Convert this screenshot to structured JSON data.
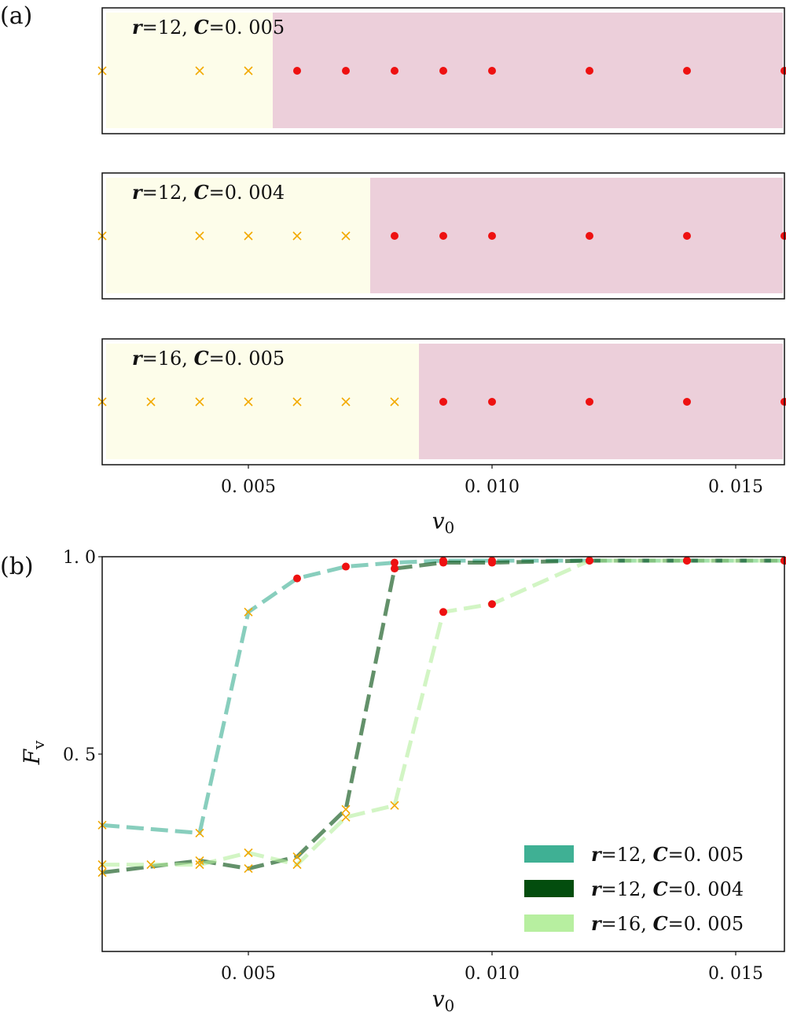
{
  "panels": {
    "a": {
      "letter": "(a)"
    },
    "b": {
      "letter": "(b)"
    }
  },
  "chart_data": [
    {
      "id": "a1",
      "type": "scatter",
      "annotation": "r=12, C=0.005",
      "x": [
        0.002,
        0.004,
        0.005,
        0.006,
        0.007,
        0.008,
        0.009,
        0.01,
        0.012,
        0.014,
        0.016
      ],
      "phase": [
        "x",
        "x",
        "x",
        "o",
        "o",
        "o",
        "o",
        "o",
        "o",
        "o",
        "o"
      ],
      "boundary": 0.0055,
      "xlim": [
        0.002,
        0.016
      ],
      "colors": {
        "left_region": "#fdfdea",
        "right_region": "#eccfda",
        "cross": "#f2a900",
        "dot": "#ee1111"
      }
    },
    {
      "id": "a2",
      "type": "scatter",
      "annotation": "r=12, C=0.004",
      "x": [
        0.002,
        0.004,
        0.005,
        0.006,
        0.007,
        0.008,
        0.009,
        0.01,
        0.012,
        0.014,
        0.016
      ],
      "phase": [
        "x",
        "x",
        "x",
        "x",
        "x",
        "o",
        "o",
        "o",
        "o",
        "o",
        "o"
      ],
      "boundary": 0.0075,
      "xlim": [
        0.002,
        0.016
      ],
      "colors": {
        "left_region": "#fdfdea",
        "right_region": "#eccfda",
        "cross": "#f2a900",
        "dot": "#ee1111"
      }
    },
    {
      "id": "a3",
      "type": "scatter",
      "annotation": "r=16, C=0.005",
      "x": [
        0.002,
        0.003,
        0.004,
        0.005,
        0.006,
        0.007,
        0.008,
        0.009,
        0.01,
        0.012,
        0.014,
        0.016
      ],
      "phase": [
        "x",
        "x",
        "x",
        "x",
        "x",
        "x",
        "x",
        "o",
        "o",
        "o",
        "o",
        "o"
      ],
      "boundary": 0.0085,
      "xlim": [
        0.002,
        0.016
      ],
      "xticks": [
        0.005,
        0.01,
        0.015
      ],
      "xtick_labels": [
        "0. 005",
        "0. 010",
        "0. 015"
      ],
      "xlabel": "v",
      "xlabel_sub": "0",
      "colors": {
        "left_region": "#fdfdea",
        "right_region": "#eccfda",
        "cross": "#f2a900",
        "dot": "#ee1111"
      }
    },
    {
      "id": "b",
      "type": "line",
      "xlim": [
        0.002,
        0.016
      ],
      "ylim": [
        0.0,
        1.0
      ],
      "xticks": [
        0.005,
        0.01,
        0.015
      ],
      "xtick_labels": [
        "0. 005",
        "0. 010",
        "0. 015"
      ],
      "yticks": [
        0.5,
        1.0
      ],
      "ytick_labels": [
        "0. 5",
        "1. 0"
      ],
      "xlabel": "v",
      "xlabel_sub": "0",
      "ylabel": "F",
      "ylabel_sub": "v",
      "legend_position": "lower-right",
      "series": [
        {
          "name": "r=12, C=0.005",
          "color": "#3fb094",
          "x": [
            0.002,
            0.004,
            0.005,
            0.006,
            0.007,
            0.008,
            0.009,
            0.01,
            0.012,
            0.014,
            0.016
          ],
          "y": [
            0.32,
            0.3,
            0.86,
            0.945,
            0.975,
            0.985,
            0.99,
            0.99,
            0.99,
            0.99,
            0.99
          ],
          "phase": [
            "x",
            "x",
            "x",
            "o",
            "o",
            "o",
            "o",
            "o",
            "o",
            "o",
            "o"
          ]
        },
        {
          "name": "r=12, C=0.004",
          "color": "#034d0e",
          "x": [
            0.002,
            0.004,
            0.005,
            0.006,
            0.007,
            0.008,
            0.009,
            0.01,
            0.012,
            0.014,
            0.016
          ],
          "y": [
            0.2,
            0.23,
            0.21,
            0.24,
            0.36,
            0.97,
            0.985,
            0.985,
            0.99,
            0.99,
            0.99
          ],
          "phase": [
            "x",
            "x",
            "x",
            "x",
            "x",
            "o",
            "o",
            "o",
            "o",
            "o",
            "o"
          ]
        },
        {
          "name": "r=16, C=0.005",
          "color": "#b7efa0",
          "x": [
            0.002,
            0.003,
            0.004,
            0.005,
            0.006,
            0.007,
            0.008,
            0.009,
            0.01,
            0.012,
            0.014,
            0.016
          ],
          "y": [
            0.22,
            0.22,
            0.22,
            0.25,
            0.22,
            0.34,
            0.37,
            0.86,
            0.88,
            0.99,
            0.99,
            0.99
          ],
          "phase": [
            "x",
            "x",
            "x",
            "x",
            "x",
            "x",
            "x",
            "o",
            "o",
            "o",
            "o",
            "o"
          ]
        }
      ],
      "colors": {
        "cross": "#f2a900",
        "dot": "#ee1111"
      }
    }
  ]
}
